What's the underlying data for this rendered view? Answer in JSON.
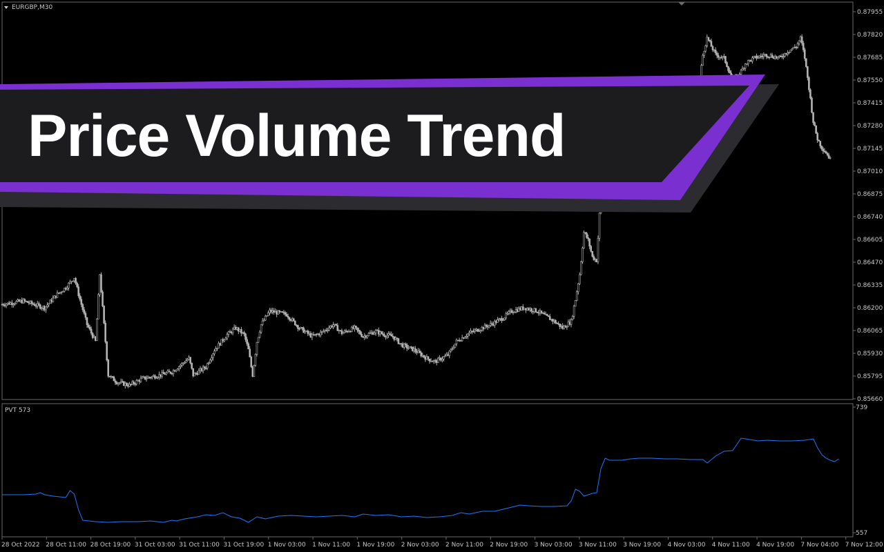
{
  "chart_window": {
    "symbol_label": "EURGBP,M30",
    "indicator_label": "PVT 573",
    "banner_title": "Price Volume Trend"
  },
  "colors": {
    "background": "#000000",
    "candle": "#b4b4b4",
    "pvt_line": "#1e78ff",
    "banner_bg": "#1c1c1f",
    "banner_accent": "#7a2fd1",
    "banner_shadow": "#2c2c30"
  },
  "chart_data": [
    {
      "type": "candlestick",
      "title": "EURGBP,M30",
      "ylim": [
        0.8566,
        0.87955
      ],
      "y_tick_labels": [
        "0.87955",
        "0.87820",
        "0.87685",
        "0.87550",
        "0.87415",
        "0.87280",
        "0.87145",
        "0.87010",
        "0.86875",
        "0.86740",
        "0.86605",
        "0.86470",
        "0.86335",
        "0.86200",
        "0.86065",
        "0.85930",
        "0.85795",
        "0.85660"
      ],
      "x_tick_labels": [
        "28 Oct 2022",
        "28 Oct 11:00",
        "28 Oct 19:00",
        "31 Oct 03:00",
        "31 Oct 11:00",
        "31 Oct 19:00",
        "1 Nov 03:00",
        "1 Nov 11:00",
        "1 Nov 19:00",
        "2 Nov 03:00",
        "2 Nov 11:00",
        "2 Nov 19:00",
        "3 Nov 03:00",
        "3 Nov 11:00",
        "3 Nov 19:00",
        "4 Nov 03:00",
        "4 Nov 11:00",
        "4 Nov 19:00",
        "7 Nov 04:00",
        "7 Nov 12:00"
      ],
      "close_path": [
        [
          0,
          0.8622
        ],
        [
          5,
          0.8624
        ],
        [
          10,
          0.862
        ],
        [
          13,
          0.8628
        ],
        [
          15,
          0.8632
        ],
        [
          17,
          0.8638
        ],
        [
          18,
          0.8628
        ],
        [
          20,
          0.861
        ],
        [
          22,
          0.86
        ],
        [
          23,
          0.864
        ],
        [
          25,
          0.858
        ],
        [
          27,
          0.8576
        ],
        [
          30,
          0.8574
        ],
        [
          33,
          0.8578
        ],
        [
          37,
          0.858
        ],
        [
          40,
          0.8582
        ],
        [
          44,
          0.859
        ],
        [
          45,
          0.858
        ],
        [
          48,
          0.8585
        ],
        [
          50,
          0.8595
        ],
        [
          53,
          0.8604
        ],
        [
          55,
          0.8608
        ],
        [
          57,
          0.8604
        ],
        [
          58,
          0.8595
        ],
        [
          59,
          0.858
        ],
        [
          60,
          0.86
        ],
        [
          61,
          0.861
        ],
        [
          63,
          0.8618
        ],
        [
          65,
          0.8617
        ],
        [
          67,
          0.8616
        ],
        [
          70,
          0.8608
        ],
        [
          73,
          0.8603
        ],
        [
          75,
          0.8605
        ],
        [
          78,
          0.861
        ],
        [
          80,
          0.8605
        ],
        [
          83,
          0.8608
        ],
        [
          85,
          0.8603
        ],
        [
          88,
          0.8606
        ],
        [
          90,
          0.8604
        ],
        [
          92,
          0.8603
        ],
        [
          94,
          0.8598
        ],
        [
          97,
          0.8595
        ],
        [
          100,
          0.859
        ],
        [
          102,
          0.8588
        ],
        [
          105,
          0.8592
        ],
        [
          107,
          0.86
        ],
        [
          110,
          0.8605
        ],
        [
          113,
          0.8608
        ],
        [
          115,
          0.861
        ],
        [
          118,
          0.8614
        ],
        [
          120,
          0.8618
        ],
        [
          123,
          0.862
        ],
        [
          126,
          0.8618
        ],
        [
          128,
          0.8615
        ],
        [
          130,
          0.8612
        ],
        [
          132,
          0.8608
        ],
        [
          134,
          0.8612
        ],
        [
          135,
          0.8625
        ],
        [
          136,
          0.864
        ],
        [
          137,
          0.8665
        ],
        [
          138,
          0.866
        ],
        [
          139,
          0.865
        ],
        [
          140,
          0.8648
        ],
        [
          141,
          0.869
        ],
        [
          143,
          0.87
        ],
        [
          146,
          0.87
        ],
        [
          149,
          0.8705
        ],
        [
          152,
          0.8712
        ],
        [
          155,
          0.8715
        ],
        [
          157,
          0.8722
        ],
        [
          160,
          0.873
        ],
        [
          162,
          0.8738
        ],
        [
          164,
          0.875
        ],
        [
          165,
          0.877
        ],
        [
          166,
          0.878
        ],
        [
          167,
          0.8775
        ],
        [
          168,
          0.877
        ],
        [
          170,
          0.8768
        ],
        [
          172,
          0.8755
        ],
        [
          174,
          0.876
        ],
        [
          175,
          0.8765
        ],
        [
          177,
          0.8768
        ],
        [
          180,
          0.877
        ],
        [
          183,
          0.8768
        ],
        [
          185,
          0.8772
        ],
        [
          187,
          0.8775
        ],
        [
          188,
          0.878
        ],
        [
          189,
          0.8768
        ],
        [
          190,
          0.875
        ],
        [
          191,
          0.873
        ],
        [
          192,
          0.872
        ],
        [
          193,
          0.8715
        ],
        [
          194,
          0.8712
        ],
        [
          195,
          0.8708
        ]
      ]
    },
    {
      "type": "line",
      "title": "PVT 573",
      "ylim": [
        557,
        739
      ],
      "y_tick_labels": [
        "739",
        "557"
      ],
      "x_tick_labels": [
        "28 Oct 2022",
        "28 Oct 11:00",
        "28 Oct 19:00",
        "31 Oct 03:00",
        "31 Oct 11:00",
        "31 Oct 19:00",
        "1 Nov 03:00",
        "1 Nov 11:00",
        "1 Nov 19:00",
        "2 Nov 03:00",
        "2 Nov 11:00",
        "2 Nov 19:00",
        "3 Nov 03:00",
        "3 Nov 11:00",
        "3 Nov 19:00",
        "4 Nov 03:00",
        "4 Nov 11:00",
        "4 Nov 19:00",
        "7 Nov 04:00",
        "7 Nov 12:00"
      ],
      "series": [
        {
          "points": [
            [
              0,
              612
            ],
            [
              5,
              612
            ],
            [
              8,
              613
            ],
            [
              9,
              615
            ],
            [
              10,
              612
            ],
            [
              12,
              610
            ],
            [
              15,
              608
            ],
            [
              16,
              618
            ],
            [
              17,
              613
            ],
            [
              18,
              590
            ],
            [
              19,
              575
            ],
            [
              22,
              573
            ],
            [
              25,
              572
            ],
            [
              28,
              573
            ],
            [
              32,
              573
            ],
            [
              35,
              574
            ],
            [
              38,
              572
            ],
            [
              40,
              575
            ],
            [
              41,
              574
            ],
            [
              43,
              577
            ],
            [
              46,
              580
            ],
            [
              48,
              583
            ],
            [
              50,
              582
            ],
            [
              52,
              586
            ],
            [
              54,
              580
            ],
            [
              56,
              578
            ],
            [
              58,
              572
            ],
            [
              60,
              580
            ],
            [
              62,
              577
            ],
            [
              65,
              581
            ],
            [
              68,
              582
            ],
            [
              71,
              581
            ],
            [
              74,
              580
            ],
            [
              77,
              581
            ],
            [
              80,
              582
            ],
            [
              83,
              580
            ],
            [
              85,
              584
            ],
            [
              88,
              582
            ],
            [
              91,
              583
            ],
            [
              94,
              580
            ],
            [
              97,
              581
            ],
            [
              100,
              579
            ],
            [
              103,
              580
            ],
            [
              106,
              582
            ],
            [
              108,
              586
            ],
            [
              110,
              584
            ],
            [
              113,
              588
            ],
            [
              116,
              588
            ],
            [
              118,
              591
            ],
            [
              120,
              594
            ],
            [
              122,
              597
            ],
            [
              124,
              596
            ],
            [
              127,
              595
            ],
            [
              130,
              595
            ],
            [
              133,
              596
            ],
            [
              134,
              603
            ],
            [
              135,
              620
            ],
            [
              136,
              617
            ],
            [
              137,
              610
            ],
            [
              139,
              614
            ],
            [
              140,
              615
            ],
            [
              141,
              650
            ],
            [
              142,
              665
            ],
            [
              143,
              662
            ],
            [
              146,
              662
            ],
            [
              148,
              664
            ],
            [
              150,
              665
            ],
            [
              153,
              665
            ],
            [
              156,
              664
            ],
            [
              159,
              664
            ],
            [
              162,
              663
            ],
            [
              165,
              663
            ],
            [
              166,
              658
            ],
            [
              168,
              668
            ],
            [
              170,
              675
            ],
            [
              172,
              676
            ],
            [
              174,
              694
            ],
            [
              176,
              692
            ],
            [
              178,
              690
            ],
            [
              180,
              691
            ],
            [
              183,
              690
            ],
            [
              186,
              690
            ],
            [
              189,
              691
            ],
            [
              191,
              693
            ],
            [
              192,
              680
            ],
            [
              193,
              670
            ],
            [
              194,
              665
            ],
            [
              195,
              662
            ],
            [
              196,
              660
            ],
            [
              197,
              664
            ]
          ]
        }
      ]
    }
  ]
}
